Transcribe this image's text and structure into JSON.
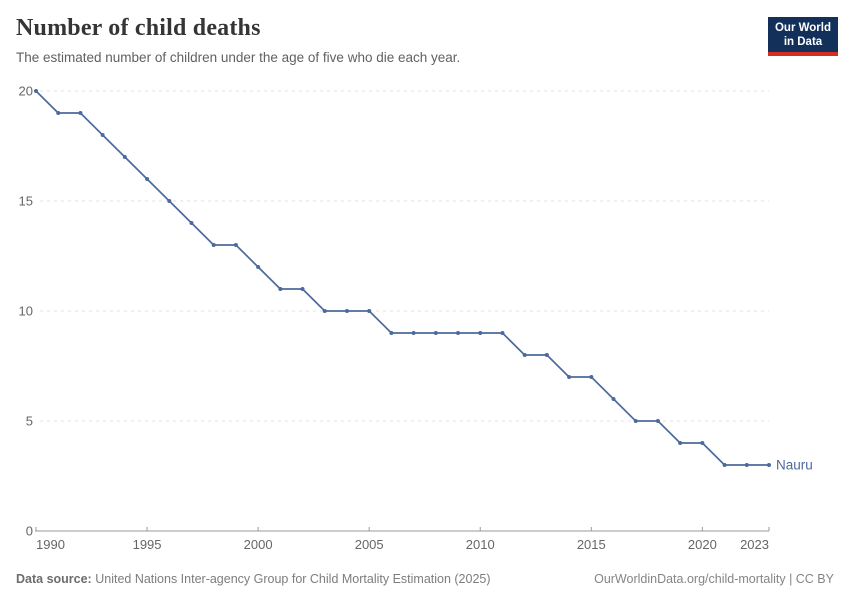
{
  "header": {
    "title": "Number of child deaths",
    "subtitle": "The estimated number of children under the age of five who die each year."
  },
  "logo": {
    "line1": "Our World",
    "line2": "in Data",
    "bg_color": "#12305a",
    "accent_color": "#d62d23"
  },
  "chart_data": {
    "type": "line",
    "title": "Number of child deaths",
    "entity_label": "Nauru",
    "x": [
      1990,
      1991,
      1992,
      1993,
      1994,
      1995,
      1996,
      1997,
      1998,
      1999,
      2000,
      2001,
      2002,
      2003,
      2004,
      2005,
      2006,
      2007,
      2008,
      2009,
      2010,
      2011,
      2012,
      2013,
      2014,
      2015,
      2016,
      2017,
      2018,
      2019,
      2020,
      2021,
      2022,
      2023
    ],
    "series": [
      {
        "name": "Nauru",
        "values": [
          20,
          19,
          19,
          18,
          17,
          16,
          15,
          14,
          13,
          13,
          12,
          11,
          11,
          10,
          10,
          10,
          9,
          9,
          9,
          9,
          9,
          9,
          8,
          8,
          7,
          7,
          6,
          5,
          5,
          4,
          4,
          3,
          3,
          3
        ]
      }
    ],
    "xlim": [
      1990,
      2023
    ],
    "ylim": [
      0,
      20
    ],
    "xticks": [
      1990,
      1995,
      2000,
      2005,
      2010,
      2015,
      2020,
      2023
    ],
    "yticks": [
      0,
      5,
      10,
      15,
      20
    ],
    "grid": "horizontal-dashed",
    "legend_position": "end-of-line",
    "line_color": "#4c6a9c",
    "marker": "dot",
    "grid_color": "#e0e0e0",
    "axis_color": "#9a9a9a",
    "tick_label_color": "#666666"
  },
  "footer": {
    "source_label": "Data source:",
    "source_text": "United Nations Inter-agency Group for Child Mortality Estimation (2025)",
    "link_text": "OurWorldinData.org/child-mortality | CC BY"
  }
}
